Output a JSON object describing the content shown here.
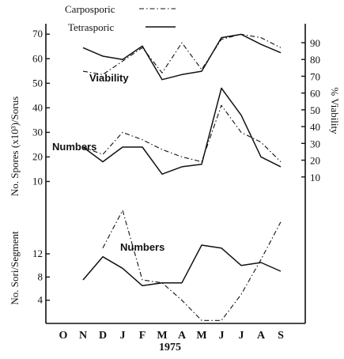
{
  "chart_data": {
    "type": "line",
    "x_axis": {
      "categories": [
        "O",
        "N",
        "D",
        "J",
        "F",
        "M",
        "A",
        "M",
        "J",
        "J",
        "A",
        "S"
      ],
      "year_label": "1975"
    },
    "legend": {
      "placement": "top",
      "entries": [
        {
          "name": "Carposporic",
          "style": "dot-dash"
        },
        {
          "name": "Tetrasporic",
          "style": "solid"
        }
      ]
    },
    "panels": [
      {
        "id": "spores",
        "left_axis": {
          "label": "No. Spores (x10³)/Sorus",
          "range": [
            5,
            72
          ],
          "ticks": [
            10,
            20,
            30,
            40,
            50,
            60,
            70
          ]
        },
        "right_axis": {
          "label": "% Viability",
          "range": [
            0,
            98
          ],
          "ticks": [
            10,
            20,
            30,
            40,
            50,
            60,
            70,
            80,
            90
          ]
        },
        "annotations": [
          "Viability",
          "Numbers"
        ],
        "series": [
          {
            "name": "Carposporic",
            "measure": "Viability",
            "axis": "right",
            "x": [
              "N",
              "D",
              "J",
              "F",
              "M",
              "A",
              "M",
              "J",
              "J",
              "A",
              "S"
            ],
            "values": [
              73,
              71,
              79,
              87,
              72,
              90,
              74,
              92,
              95,
              93,
              87
            ]
          },
          {
            "name": "Tetrasporic",
            "measure": "Viability",
            "axis": "right",
            "x": [
              "N",
              "D",
              "J",
              "F",
              "M",
              "A",
              "M",
              "J",
              "J",
              "A",
              "S"
            ],
            "values": [
              87,
              82,
              80,
              88,
              68,
              71,
              73,
              93,
              95,
              89,
              84
            ]
          },
          {
            "name": "Carposporic",
            "measure": "Numbers",
            "axis": "left",
            "x": [
              "N",
              "D",
              "J",
              "F",
              "M",
              "A",
              "M",
              "J",
              "J",
              "A",
              "S"
            ],
            "values": [
              24,
              21,
              30,
              27,
              23,
              20,
              18,
              41,
              30,
              26,
              18
            ]
          },
          {
            "name": "Tetrasporic",
            "measure": "Numbers",
            "axis": "left",
            "x": [
              "N",
              "D",
              "J",
              "F",
              "M",
              "A",
              "M",
              "J",
              "J",
              "A",
              "S"
            ],
            "values": [
              24,
              18,
              24,
              24,
              13,
              16,
              17,
              48,
              37,
              20,
              16
            ]
          }
        ]
      },
      {
        "id": "sori",
        "left_axis": {
          "label": "No. Sori/Segment",
          "range": [
            0,
            21
          ],
          "ticks": [
            4,
            8,
            12
          ]
        },
        "annotations": [
          "Numbers"
        ],
        "series": [
          {
            "name": "Carposporic",
            "measure": "Numbers",
            "axis": "left",
            "x": [
              "D",
              "J",
              "F",
              "M",
              "A",
              "M",
              "J",
              "J",
              "A",
              "S"
            ],
            "values": [
              13,
              19.5,
              7.5,
              7,
              4,
              0.5,
              0.5,
              5,
              11,
              17.5
            ]
          },
          {
            "name": "Tetrasporic",
            "measure": "Numbers",
            "axis": "left",
            "x": [
              "N",
              "D",
              "J",
              "F",
              "M",
              "A",
              "M",
              "J",
              "J",
              "A",
              "S"
            ],
            "values": [
              7.5,
              11.5,
              9.5,
              6.5,
              7,
              7,
              13.5,
              13,
              10,
              10.5,
              9
            ]
          }
        ]
      }
    ]
  }
}
